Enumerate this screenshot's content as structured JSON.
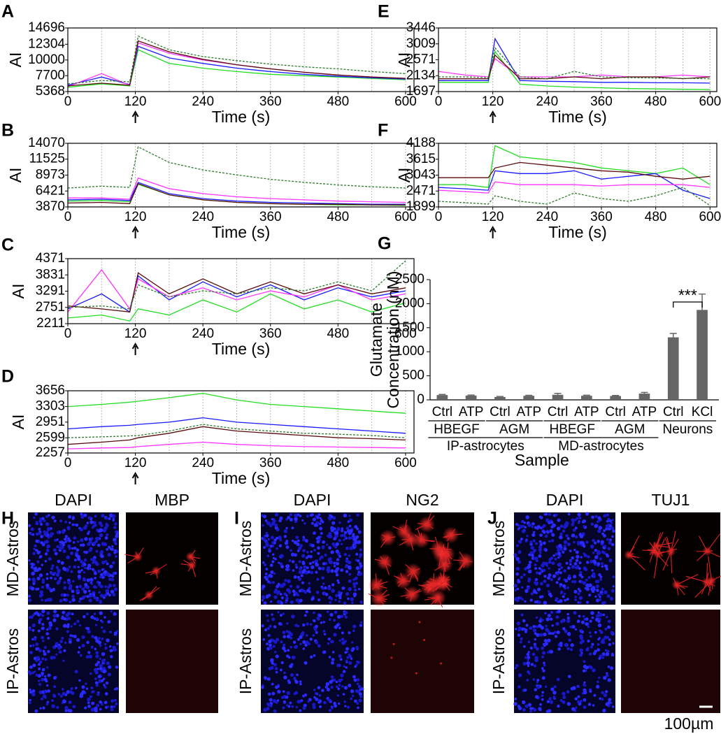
{
  "chart_data": [
    {
      "panel": "A",
      "type": "line",
      "ylabel": "AI",
      "xlabel": "Time (s)",
      "grid": true,
      "xlim": [
        0,
        615
      ],
      "xticks": [
        0,
        120,
        240,
        360,
        480,
        600
      ],
      "ylim": [
        5368,
        14696
      ],
      "yticks": [
        5368,
        7700,
        10000,
        12304,
        14696
      ],
      "x": [
        0,
        60,
        110,
        125,
        180,
        240,
        300,
        360,
        420,
        480,
        540,
        600
      ],
      "series": [
        {
          "color": "#22dd22",
          "values": [
            6000,
            6500,
            6200,
            11500,
            9500,
            8800,
            8300,
            7900,
            7700,
            7500,
            7300,
            7100
          ]
        },
        {
          "color": "#1a1aff",
          "values": [
            6300,
            7500,
            6400,
            12000,
            10300,
            9500,
            8800,
            8300,
            7900,
            7600,
            7400,
            7200
          ]
        },
        {
          "color": "#ff33ff",
          "values": [
            6100,
            8000,
            6300,
            12500,
            11000,
            10000,
            9300,
            8700,
            8200,
            7800,
            7500,
            7300
          ]
        },
        {
          "color": "#5a0a0a",
          "values": [
            6200,
            6600,
            6300,
            12800,
            11200,
            10100,
            9300,
            8700,
            8200,
            7800,
            7500,
            7300
          ]
        },
        {
          "color": "#2e7a2e",
          "dash": true,
          "values": [
            6500,
            7000,
            6800,
            13500,
            11500,
            10500,
            9900,
            9400,
            9000,
            8700,
            8300,
            8000
          ]
        }
      ]
    },
    {
      "panel": "B",
      "type": "line",
      "ylabel": "AI",
      "xlabel": "Time (s)",
      "grid": true,
      "xlim": [
        0,
        615
      ],
      "xticks": [
        0,
        120,
        240,
        360,
        480,
        600
      ],
      "ylim": [
        3870,
        14070
      ],
      "yticks": [
        3870,
        6421,
        8973,
        11525,
        14070
      ],
      "x": [
        0,
        60,
        110,
        125,
        180,
        240,
        300,
        360,
        420,
        480,
        540,
        600
      ],
      "series": [
        {
          "color": "#22dd22",
          "values": [
            4800,
            4900,
            4700,
            7500,
            5800,
            5000,
            4600,
            4400,
            4300,
            4200,
            4200,
            4100
          ]
        },
        {
          "color": "#1a1aff",
          "values": [
            5000,
            5100,
            4900,
            7800,
            6000,
            5200,
            4800,
            4600,
            4500,
            4400,
            4300,
            4300
          ]
        },
        {
          "color": "#ff33ff",
          "values": [
            5300,
            5300,
            5100,
            8500,
            6800,
            6000,
            5500,
            5200,
            5000,
            4800,
            4700,
            4600
          ]
        },
        {
          "color": "#5a0a0a",
          "values": [
            4500,
            4600,
            4400,
            7600,
            5800,
            5000,
            4600,
            4400,
            4300,
            4300,
            4200,
            4200
          ]
        },
        {
          "color": "#2e7a2e",
          "dash": true,
          "values": [
            6900,
            7200,
            7000,
            13500,
            11000,
            9800,
            9000,
            8300,
            7800,
            7400,
            7100,
            6900
          ]
        }
      ]
    },
    {
      "panel": "C",
      "type": "line",
      "ylabel": "AI",
      "xlabel": "Time (s)",
      "grid": true,
      "xlim": [
        0,
        615
      ],
      "xticks": [
        0,
        120,
        240,
        360,
        480,
        600
      ],
      "ylim": [
        2211,
        4371
      ],
      "yticks": [
        2211,
        2751,
        3291,
        3831,
        4371
      ],
      "x": [
        0,
        60,
        110,
        125,
        180,
        240,
        300,
        360,
        420,
        480,
        540,
        600
      ],
      "series": [
        {
          "color": "#22dd22",
          "values": [
            2400,
            2500,
            2300,
            2700,
            2500,
            3000,
            2600,
            3200,
            2700,
            3000,
            2600,
            2900
          ]
        },
        {
          "color": "#1a1aff",
          "values": [
            2700,
            3200,
            2600,
            3800,
            3000,
            3600,
            3100,
            3500,
            3000,
            3400,
            3100,
            3300
          ]
        },
        {
          "color": "#ff33ff",
          "values": [
            2600,
            4000,
            2700,
            3700,
            3100,
            3400,
            3000,
            3300,
            3100,
            3500,
            3000,
            3200
          ]
        },
        {
          "color": "#5a0a0a",
          "values": [
            2800,
            2700,
            2600,
            3900,
            3200,
            3700,
            3200,
            3600,
            3200,
            3500,
            3200,
            3400
          ]
        },
        {
          "color": "#2e7a2e",
          "dash": true,
          "values": [
            2750,
            2800,
            2700,
            3500,
            3100,
            3300,
            3200,
            3400,
            3300,
            3600,
            3300,
            4300
          ]
        }
      ]
    },
    {
      "panel": "D",
      "type": "line",
      "ylabel": "AI",
      "xlabel": "Time (s)",
      "grid": true,
      "xlim": [
        0,
        615
      ],
      "xticks": [
        0,
        120,
        240,
        360,
        480,
        600
      ],
      "ylim": [
        2257,
        3656
      ],
      "yticks": [
        2257,
        2599,
        2951,
        3303,
        3656
      ],
      "x": [
        0,
        60,
        110,
        125,
        180,
        240,
        300,
        360,
        420,
        480,
        540,
        600
      ],
      "series": [
        {
          "color": "#22dd22",
          "values": [
            3300,
            3350,
            3400,
            3420,
            3500,
            3600,
            3450,
            3350,
            3300,
            3250,
            3200,
            3150
          ]
        },
        {
          "color": "#1a1aff",
          "values": [
            2800,
            2850,
            2880,
            2900,
            2950,
            3050,
            2950,
            2900,
            2850,
            2800,
            2750,
            2700
          ]
        },
        {
          "color": "#ff33ff",
          "values": [
            2350,
            2370,
            2380,
            2400,
            2450,
            2500,
            2450,
            2420,
            2400,
            2390,
            2380,
            2370
          ]
        },
        {
          "color": "#5a0a0a",
          "values": [
            2450,
            2500,
            2550,
            2600,
            2700,
            2850,
            2750,
            2700,
            2650,
            2600,
            2580,
            2550
          ]
        },
        {
          "color": "#2e7a2e",
          "dash": true,
          "values": [
            2600,
            2620,
            2640,
            2650,
            2750,
            2900,
            2800,
            2750,
            2700,
            2680,
            2650,
            2600
          ]
        }
      ]
    },
    {
      "panel": "E",
      "type": "line",
      "ylabel": "AI",
      "xlabel": "Time (s)",
      "grid": true,
      "xlim": [
        0,
        615
      ],
      "xticks": [
        0,
        120,
        240,
        360,
        480,
        600
      ],
      "ylim": [
        1697,
        3446
      ],
      "yticks": [
        1697,
        2134,
        2571,
        3009,
        3446
      ],
      "x": [
        0,
        60,
        110,
        125,
        180,
        240,
        300,
        360,
        420,
        480,
        540,
        600
      ],
      "series": [
        {
          "color": "#22dd22",
          "values": [
            1950,
            1950,
            1950,
            2800,
            1900,
            1850,
            1820,
            1800,
            1780,
            1770,
            1760,
            1750
          ]
        },
        {
          "color": "#1a1aff",
          "values": [
            2000,
            2000,
            2000,
            3150,
            2000,
            1980,
            1970,
            1950,
            1950,
            1940,
            1940,
            1930
          ]
        },
        {
          "color": "#ff33ff",
          "values": [
            2250,
            2150,
            2100,
            2600,
            2100,
            2100,
            2100,
            2150,
            2100,
            2100,
            2150,
            2100
          ]
        },
        {
          "color": "#5a0a0a",
          "values": [
            2050,
            2050,
            2050,
            2700,
            2050,
            2050,
            2100,
            2050,
            2100,
            2100,
            2050,
            2100
          ]
        },
        {
          "color": "#2e7a2e",
          "dash": true,
          "values": [
            2100,
            2100,
            2080,
            2900,
            2100,
            2050,
            2250,
            2100,
            2080,
            2070,
            2060,
            2050
          ]
        }
      ]
    },
    {
      "panel": "F",
      "type": "line",
      "ylabel": "AI",
      "xlabel": "Time (s)",
      "grid": true,
      "xlim": [
        0,
        615
      ],
      "xticks": [
        0,
        120,
        240,
        360,
        480,
        600
      ],
      "ylim": [
        1899,
        4188
      ],
      "yticks": [
        1899,
        2471,
        3043,
        3615,
        4188
      ],
      "x": [
        0,
        60,
        110,
        125,
        180,
        240,
        300,
        360,
        420,
        480,
        540,
        600
      ],
      "series": [
        {
          "color": "#22dd22",
          "values": [
            2700,
            2700,
            2600,
            4100,
            3700,
            3600,
            3500,
            3300,
            3200,
            3100,
            3300,
            2700
          ]
        },
        {
          "color": "#1a1aff",
          "values": [
            2600,
            2550,
            2500,
            3200,
            3100,
            3100,
            3200,
            2900,
            3000,
            3100,
            2500,
            2200
          ]
        },
        {
          "color": "#ff33ff",
          "values": [
            2500,
            2450,
            2400,
            2800,
            2700,
            2700,
            2700,
            2650,
            2700,
            2700,
            2700,
            2600
          ]
        },
        {
          "color": "#5a0a0a",
          "values": [
            2950,
            2950,
            2950,
            3300,
            3500,
            3400,
            3300,
            3200,
            3150,
            3000,
            2900,
            3000
          ]
        },
        {
          "color": "#2e7a2e",
          "dash": true,
          "values": [
            2100,
            2050,
            2000,
            2300,
            2100,
            2000,
            2400,
            2200,
            2100,
            2300,
            2600,
            1950
          ]
        }
      ]
    },
    {
      "panel": "G",
      "type": "bar",
      "ylabel": [
        "Glutamate",
        "Concentration (nM)"
      ],
      "xlabel": "Sample",
      "color": "#666666",
      "ylim": [
        0,
        2500
      ],
      "yticks": [
        0,
        500,
        1000,
        1500,
        2000,
        2500
      ],
      "significance": "***",
      "groups": [
        {
          "name": "IP-astrocytes",
          "subgroups": [
            {
              "name": "HBEGF",
              "categories": [
                "Ctrl",
                "ATP"
              ],
              "values": [
                100,
                90
              ],
              "errors": [
                12,
                10
              ]
            },
            {
              "name": "AGM",
              "categories": [
                "Ctrl",
                "ATP"
              ],
              "values": [
                60,
                85
              ],
              "errors": [
                10,
                10
              ]
            }
          ]
        },
        {
          "name": "MD-astrocytes",
          "subgroups": [
            {
              "name": "HBEGF",
              "categories": [
                "Ctrl",
                "ATP"
              ],
              "values": [
                105,
                85
              ],
              "errors": [
                30,
                12
              ]
            },
            {
              "name": "AGM",
              "categories": [
                "Ctrl",
                "ATP"
              ],
              "values": [
                80,
                130
              ],
              "errors": [
                10,
                25
              ]
            }
          ]
        },
        {
          "subgroups": [
            {
              "name": "Neurons",
              "categories": [
                "Ctrl",
                "KCl"
              ],
              "values": [
                1300,
                1870
              ],
              "errors": [
                80,
                330
              ]
            }
          ]
        }
      ]
    }
  ],
  "image_panels": [
    {
      "panel": "H",
      "columns": [
        "DAPI",
        "MBP"
      ],
      "rows": [
        "MD-Astros",
        "IP-Astros"
      ]
    },
    {
      "panel": "I",
      "columns": [
        "DAPI",
        "NG2"
      ],
      "rows": [
        "MD-Astros",
        "IP-Astros"
      ]
    },
    {
      "panel": "J",
      "columns": [
        "DAPI",
        "TUJ1"
      ],
      "rows": [
        "MD-Astros",
        "IP-Astros"
      ]
    }
  ],
  "scale_bar": "100µm"
}
